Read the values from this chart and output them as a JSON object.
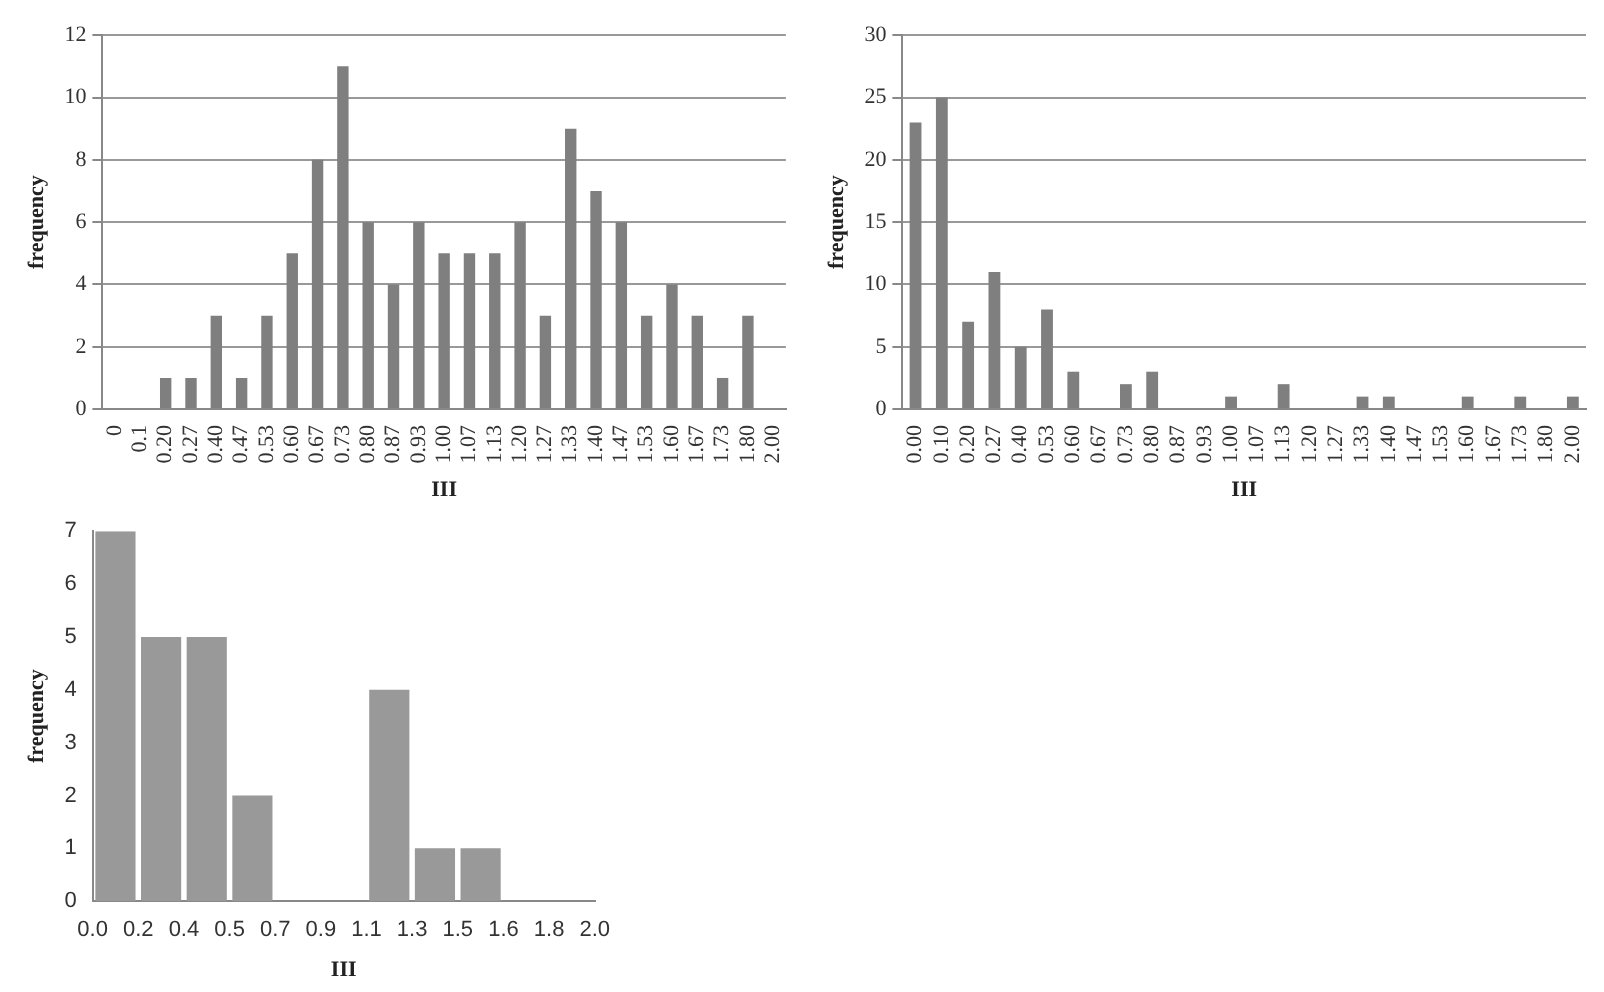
{
  "chart_data": [
    {
      "type": "bar",
      "xlabel": "III",
      "ylabel": "frequency",
      "color": "#7f7f7f",
      "grid": "y",
      "categories": [
        "0",
        "0.1",
        "0.20",
        "0.27",
        "0.40",
        "0.47",
        "0.53",
        "0.60",
        "0.67",
        "0.73",
        "0.80",
        "0.87",
        "0.93",
        "1.00",
        "1.07",
        "1.13",
        "1.20",
        "1.27",
        "1.33",
        "1.40",
        "1.47",
        "1.53",
        "1.60",
        "1.67",
        "1.73",
        "1.80",
        "2.00"
      ],
      "values": [
        0,
        0,
        1,
        1,
        3,
        1,
        3,
        5,
        8,
        11,
        6,
        4,
        6,
        5,
        5,
        5,
        6,
        3,
        9,
        7,
        6,
        3,
        4,
        3,
        1,
        3,
        0
      ],
      "ylim": [
        0,
        12
      ],
      "yticks": [
        0,
        2,
        4,
        6,
        8,
        10,
        12
      ]
    },
    {
      "type": "bar",
      "xlabel": "III",
      "ylabel": "frequency",
      "color": "#7f7f7f",
      "grid": "y",
      "categories": [
        "0.00",
        "0.10",
        "0.20",
        "0.27",
        "0.40",
        "0.53",
        "0.60",
        "0.67",
        "0.73",
        "0.80",
        "0.87",
        "0.93",
        "1.00",
        "1.07",
        "1.13",
        "1.20",
        "1.27",
        "1.33",
        "1.40",
        "1.47",
        "1.53",
        "1.60",
        "1.67",
        "1.73",
        "1.80",
        "2.00"
      ],
      "values": [
        23,
        25,
        7,
        11,
        5,
        8,
        3,
        0,
        2,
        3,
        0,
        0,
        1,
        0,
        2,
        0,
        0,
        1,
        1,
        0,
        0,
        1,
        0,
        1,
        0,
        1
      ],
      "ylim": [
        0,
        30
      ],
      "yticks": [
        0,
        5,
        10,
        15,
        20,
        25,
        30
      ]
    },
    {
      "type": "histogram",
      "xlabel": "III",
      "ylabel": "frequency",
      "color": "#999999",
      "grid": false,
      "bins": [
        0,
        0.1818,
        0.3636,
        0.5455,
        0.7273,
        0.9091,
        1.0909,
        1.2727,
        1.4545,
        1.6364,
        1.8182,
        2
      ],
      "values": [
        7,
        5,
        5,
        2,
        0,
        0,
        4,
        1,
        1,
        0,
        0
      ],
      "xlim": [
        0,
        2
      ],
      "xticks": [
        {
          "value": 0,
          "label": "0.0"
        },
        {
          "value": 0.1818,
          "label": "0.2"
        },
        {
          "value": 0.3636,
          "label": "0.4"
        },
        {
          "value": 0.5455,
          "label": "0.5"
        },
        {
          "value": 0.7273,
          "label": "0.7"
        },
        {
          "value": 0.9091,
          "label": "0.9"
        },
        {
          "value": 1.0909,
          "label": "1.1"
        },
        {
          "value": 1.2727,
          "label": "1.3"
        },
        {
          "value": 1.4545,
          "label": "1.5"
        },
        {
          "value": 1.6364,
          "label": "1.6"
        },
        {
          "value": 1.8182,
          "label": "1.8"
        },
        {
          "value": 2,
          "label": "2.0"
        }
      ],
      "ylim": [
        0,
        7
      ],
      "yticks": [
        0,
        1,
        2,
        3,
        4,
        5,
        6,
        7
      ]
    }
  ]
}
